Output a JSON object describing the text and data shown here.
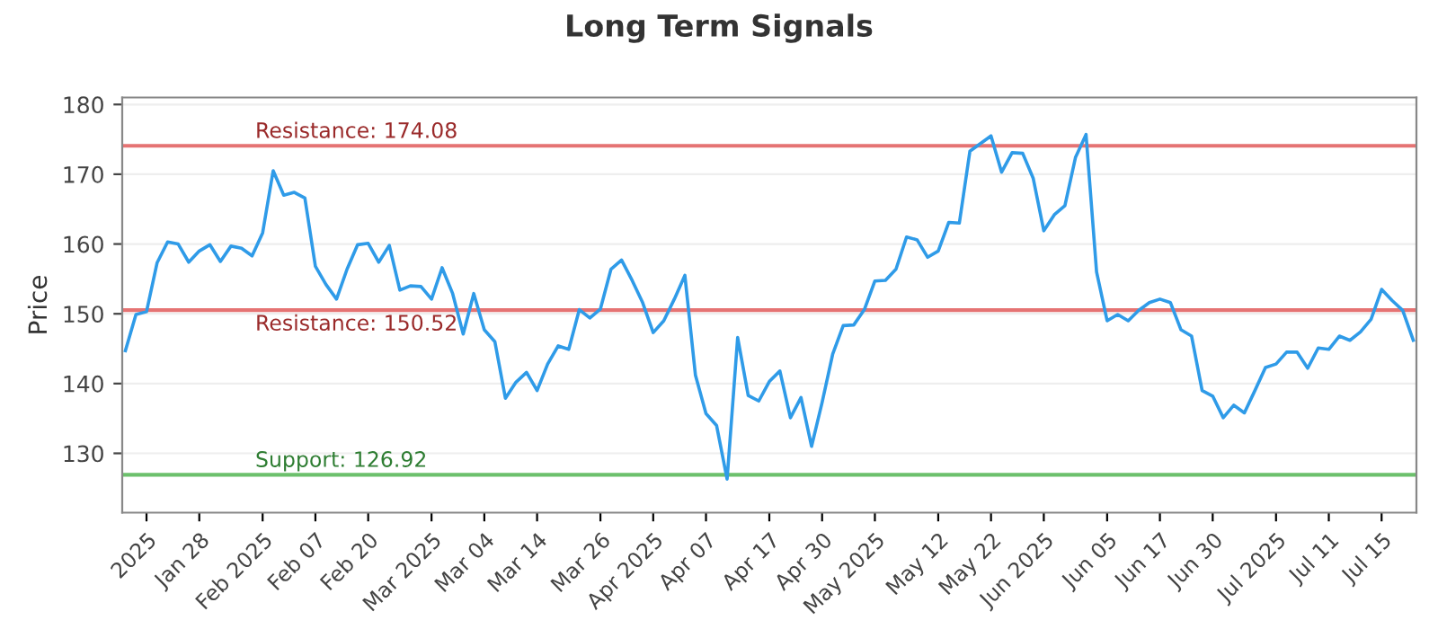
{
  "chart_data": {
    "type": "line",
    "title": "Long Term Signals",
    "ylabel": "Price",
    "categories": [
      null,
      null,
      "2025",
      null,
      null,
      null,
      null,
      "Jan 28",
      null,
      null,
      null,
      null,
      null,
      "Feb 2025",
      null,
      null,
      null,
      null,
      "Feb 07",
      null,
      null,
      null,
      null,
      "Feb 20",
      null,
      null,
      null,
      null,
      null,
      "Mar 2025",
      null,
      null,
      null,
      null,
      "Mar 04",
      null,
      null,
      null,
      null,
      "Mar 14",
      null,
      null,
      null,
      null,
      null,
      "Mar 26",
      null,
      null,
      null,
      null,
      "Apr 2025",
      null,
      null,
      null,
      null,
      "Apr 07",
      null,
      null,
      null,
      null,
      null,
      "Apr 17",
      null,
      null,
      null,
      null,
      "Apr 30",
      null,
      null,
      null,
      null,
      "May 2025",
      null,
      null,
      null,
      null,
      null,
      "May 12",
      null,
      null,
      null,
      null,
      "May 22",
      null,
      null,
      null,
      null,
      "Jun 2025",
      null,
      null,
      null,
      null,
      null,
      "Jun 05",
      null,
      null,
      null,
      null,
      "Jun 17",
      null,
      null,
      null,
      null,
      "Jun 30",
      null,
      null,
      null,
      null,
      null,
      "Jul 2025",
      null,
      null,
      null,
      null,
      "Jul 11",
      null,
      null,
      null,
      null,
      "Jul 15",
      null,
      null,
      null
    ],
    "series": [
      {
        "color": "#2f9be8",
        "values": [
          144.7,
          149.9,
          150.3,
          157.3,
          160.3,
          160.0,
          157.4,
          159.0,
          159.9,
          157.5,
          159.7,
          159.4,
          158.3,
          161.6,
          170.5,
          167.0,
          167.4,
          166.6,
          156.8,
          154.2,
          152.1,
          156.4,
          159.9,
          160.1,
          157.4,
          159.8,
          153.4,
          154.0,
          153.9,
          152.1,
          156.6,
          152.9,
          147.1,
          152.9,
          147.7,
          146.0,
          137.9,
          140.2,
          141.6,
          139.0,
          142.8,
          145.4,
          144.9,
          150.6,
          149.4,
          150.7,
          156.4,
          157.7,
          154.8,
          151.6,
          147.3,
          149.0,
          152.1,
          155.5,
          141.2,
          135.7,
          134.0,
          126.3,
          146.6,
          138.3,
          137.5,
          140.3,
          141.8,
          135.1,
          138.0,
          131.0,
          137.3,
          144.2,
          148.3,
          148.4,
          150.6,
          154.7,
          154.8,
          156.4,
          161.0,
          160.6,
          158.1,
          159.0,
          163.1,
          163.0,
          173.3,
          174.4,
          175.5,
          170.3,
          173.1,
          173.0,
          169.4,
          161.9,
          164.2,
          165.5,
          172.4,
          175.7,
          156.0,
          149.0,
          149.9,
          149.0,
          150.5,
          151.6,
          152.1,
          151.6,
          147.7,
          146.8,
          139.0,
          138.2,
          135.1,
          136.9,
          135.8,
          139.0,
          142.3,
          142.8,
          144.5,
          144.5,
          142.2,
          145.1,
          144.9,
          146.8,
          146.2,
          147.4,
          149.2,
          153.5,
          151.9,
          150.5,
          146.2
        ]
      }
    ],
    "ylim": [
      121.5,
      181
    ],
    "yticks": [
      130,
      140,
      150,
      160,
      170,
      180
    ],
    "grid": "y",
    "legend": false,
    "marker": "none",
    "line_style": "solid",
    "ref_lines": [
      {
        "axis": "y",
        "value": 174.08,
        "label": "Resistance: 174.08",
        "color": "#e57373"
      },
      {
        "axis": "y",
        "value": 150.52,
        "label": "Resistance: 150.52",
        "color": "#e57373"
      },
      {
        "axis": "y",
        "value": 126.92,
        "label": "Support: 126.92",
        "color": "#6cc06c"
      }
    ]
  }
}
